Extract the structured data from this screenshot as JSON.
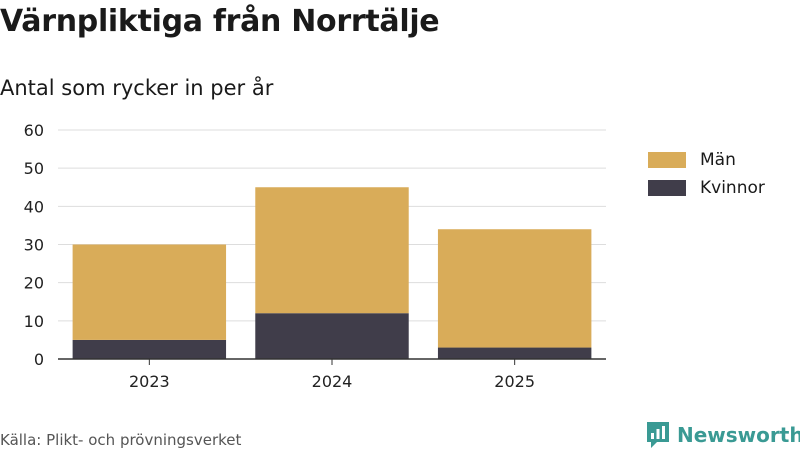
{
  "title": "Värnpliktiga från Norrtälje",
  "subtitle": "Antal som rycker in per år",
  "source": "Källa: Plikt- och prövningsverket",
  "brand": {
    "name": "Newsworthy",
    "icon": "newsworthy-logo-icon",
    "color": "#3a9a94"
  },
  "legend": [
    {
      "label": "Män",
      "color": "#d9ac59"
    },
    {
      "label": "Kvinnor",
      "color": "#403d4a"
    }
  ],
  "chart_data": {
    "type": "bar",
    "stacked": true,
    "categories": [
      "2023",
      "2024",
      "2025"
    ],
    "series": [
      {
        "name": "Kvinnor",
        "values": [
          5,
          12,
          3
        ],
        "color": "#403d4a"
      },
      {
        "name": "Män",
        "values": [
          25,
          33,
          31
        ],
        "color": "#d9ac59"
      }
    ],
    "ylim": [
      0,
      60
    ],
    "yticks": [
      0,
      10,
      20,
      30,
      40,
      50,
      60
    ],
    "grid": true,
    "legend_position": "right"
  }
}
